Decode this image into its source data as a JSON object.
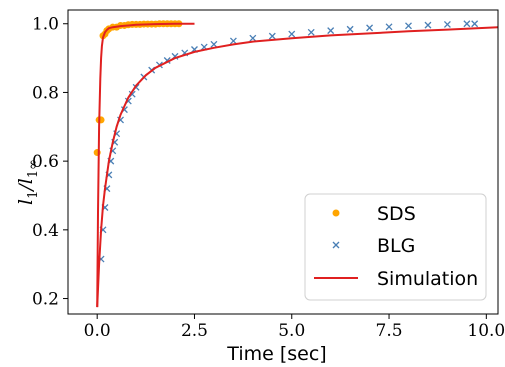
{
  "chart_data": {
    "type": "scatter",
    "xlabel": "Time [sec]",
    "ylabel": "l1/l1∞",
    "xlim": [
      -0.75,
      10.3
    ],
    "ylim": [
      0.155,
      1.04
    ],
    "x_ticks": [
      "0.0",
      "2.5",
      "5.0",
      "7.5",
      "10.0"
    ],
    "y_ticks": [
      "0.2",
      "0.4",
      "0.6",
      "0.8",
      "1.0"
    ],
    "x_tick_values": [
      0,
      2.5,
      5,
      7.5,
      10
    ],
    "y_tick_values": [
      0.2,
      0.4,
      0.6,
      0.8,
      1.0
    ],
    "grid": false,
    "legend_position": "lower-right",
    "series": [
      {
        "name": "SDS",
        "marker": "circle",
        "color": "#ffa500",
        "x": [
          0.0,
          0.05,
          0.1,
          0.15,
          0.2,
          0.25,
          0.3,
          0.4,
          0.5,
          0.6,
          0.7,
          0.8,
          0.9,
          1.0,
          1.1,
          1.2,
          1.3,
          1.4,
          1.5,
          1.6,
          1.7,
          1.8,
          1.9,
          2.0,
          2.1
        ],
        "y": [
          0.625,
          0.72,
          0.72,
          0.965,
          0.97,
          0.98,
          0.985,
          0.99,
          0.99,
          0.995,
          0.995,
          0.997,
          0.998,
          0.998,
          0.998,
          0.999,
          0.999,
          0.999,
          0.999,
          1.0,
          1.0,
          1.0,
          1.0,
          1.0,
          1.0
        ]
      },
      {
        "name": "BLG",
        "marker": "x",
        "color": "#4a7fb5",
        "x": [
          0.1,
          0.15,
          0.2,
          0.25,
          0.3,
          0.35,
          0.4,
          0.45,
          0.5,
          0.6,
          0.7,
          0.8,
          0.9,
          1.0,
          1.2,
          1.4,
          1.6,
          1.8,
          2.0,
          2.25,
          2.5,
          2.75,
          3.0,
          3.5,
          4.0,
          4.5,
          5.0,
          5.5,
          6.0,
          6.5,
          7.0,
          7.5,
          8.0,
          8.5,
          9.0,
          9.5,
          9.7
        ],
        "y": [
          0.315,
          0.4,
          0.465,
          0.52,
          0.56,
          0.6,
          0.63,
          0.655,
          0.68,
          0.72,
          0.75,
          0.775,
          0.795,
          0.815,
          0.845,
          0.865,
          0.88,
          0.893,
          0.905,
          0.915,
          0.925,
          0.932,
          0.94,
          0.95,
          0.958,
          0.964,
          0.97,
          0.975,
          0.98,
          0.984,
          0.988,
          0.991,
          0.994,
          0.996,
          0.998,
          1.0,
          1.0
        ]
      },
      {
        "name": "Simulation",
        "type": "line",
        "color": "#e02020",
        "curves": [
          {
            "x": [
              0.0,
              0.02,
              0.05,
              0.08,
              0.1,
              0.12,
              0.15,
              0.2,
              0.25,
              0.3,
              0.4,
              0.6,
              0.8,
              1.0,
              1.5,
              2.0,
              2.5
            ],
            "y": [
              0.175,
              0.45,
              0.7,
              0.84,
              0.9,
              0.935,
              0.96,
              0.975,
              0.982,
              0.987,
              0.99,
              0.993,
              0.995,
              0.997,
              0.999,
              1.0,
              1.0
            ]
          },
          {
            "x": [
              0.0,
              0.05,
              0.1,
              0.15,
              0.2,
              0.3,
              0.4,
              0.5,
              0.6,
              0.8,
              1.0,
              1.25,
              1.5,
              2.0,
              2.5,
              3.0,
              3.5,
              4.0,
              5.0,
              6.0,
              7.0,
              8.0,
              9.0,
              10.3
            ],
            "y": [
              0.175,
              0.3,
              0.4,
              0.47,
              0.52,
              0.6,
              0.655,
              0.7,
              0.735,
              0.785,
              0.82,
              0.85,
              0.872,
              0.9,
              0.918,
              0.93,
              0.94,
              0.948,
              0.958,
              0.966,
              0.972,
              0.978,
              0.983,
              0.99
            ]
          }
        ]
      }
    ]
  }
}
